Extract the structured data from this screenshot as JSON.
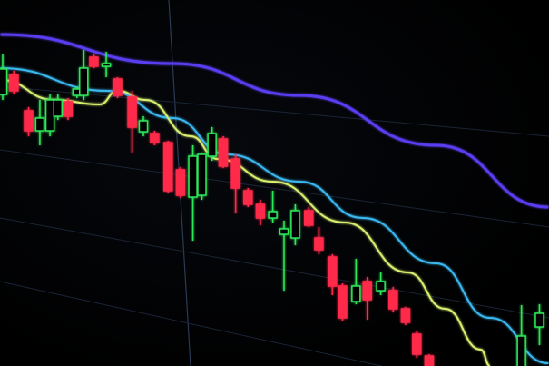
{
  "chart_data": {
    "type": "candlestick",
    "title": "",
    "xlabel": "",
    "ylabel": "",
    "xlim": [
      -0.3,
      48.5
    ],
    "ylim": [
      -1,
      100
    ],
    "grid": true,
    "legend": "none",
    "colors": {
      "up": "#2ee85a",
      "down": "#ff2a4a",
      "ma_slow": "#5a3cf0",
      "ma_mid": "#3ab8f0",
      "ma_fast": "#d8f070",
      "grid": "#2a3a55"
    },
    "candles": [
      {
        "i": 0,
        "o": 74,
        "h": 85,
        "l": 72.5,
        "c": 81
      },
      {
        "i": 1,
        "o": 79.5,
        "h": 80.5,
        "l": 74,
        "c": 75
      },
      {
        "i": 2.3,
        "o": 69.5,
        "h": 70.5,
        "l": 62.5,
        "c": 64
      },
      {
        "i": 3.3,
        "o": 64,
        "h": 72.5,
        "l": 60,
        "c": 67.5
      },
      {
        "i": 4.2,
        "o": 64,
        "h": 74,
        "l": 62.5,
        "c": 72.5
      },
      {
        "i": 4.9,
        "o": 68,
        "h": 74,
        "l": 67,
        "c": 72.5
      },
      {
        "i": 5.8,
        "o": 72,
        "h": 73,
        "l": 67,
        "c": 68
      },
      {
        "i": 6.6,
        "o": 73.75,
        "h": 76,
        "l": 73,
        "c": 75.5
      },
      {
        "i": 7.2,
        "o": 73.75,
        "h": 86.25,
        "l": 72.5,
        "c": 81.25
      },
      {
        "i": 8.1,
        "o": 84.25,
        "h": 85,
        "l": 81.25,
        "c": 81.75
      },
      {
        "i": 9.2,
        "o": 81.75,
        "h": 85.75,
        "l": 78.75,
        "c": 82.5
      },
      {
        "i": 10.2,
        "o": 78.25,
        "h": 78.75,
        "l": 73,
        "c": 73.75
      },
      {
        "i": 11.5,
        "o": 73.25,
        "h": 75,
        "l": 58,
        "c": 65
      },
      {
        "i": 12.5,
        "o": 63.75,
        "h": 68,
        "l": 62.5,
        "c": 66.75
      },
      {
        "i": 13.5,
        "o": 63.25,
        "h": 64,
        "l": 60,
        "c": 60.75
      },
      {
        "i": 14.7,
        "o": 60.75,
        "h": 61.25,
        "l": 46.75,
        "c": 47.5
      },
      {
        "i": 15.8,
        "o": 53.25,
        "h": 54,
        "l": 45.5,
        "c": 46.25
      },
      {
        "i": 16.9,
        "o": 45.75,
        "h": 60,
        "l": 33.75,
        "c": 57
      },
      {
        "i": 17.7,
        "o": 46.25,
        "h": 58,
        "l": 45,
        "c": 57.5
      },
      {
        "i": 18.6,
        "o": 57,
        "h": 65,
        "l": 55.75,
        "c": 63.25
      },
      {
        "i": 19.6,
        "o": 61.75,
        "h": 62.5,
        "l": 53.75,
        "c": 54.25
      },
      {
        "i": 20.7,
        "o": 56.25,
        "h": 57.5,
        "l": 41.25,
        "c": 48.25
      },
      {
        "i": 21.8,
        "o": 47.5,
        "h": 48.25,
        "l": 43,
        "c": 43.75
      },
      {
        "i": 22.9,
        "o": 43.75,
        "h": 45,
        "l": 38,
        "c": 40
      },
      {
        "i": 24,
        "o": 40,
        "h": 47.5,
        "l": 38.75,
        "c": 41.75
      },
      {
        "i": 25,
        "o": 35.5,
        "h": 39.25,
        "l": 20,
        "c": 37
      },
      {
        "i": 26,
        "o": 34.5,
        "h": 43.75,
        "l": 32.5,
        "c": 42
      },
      {
        "i": 27.2,
        "o": 42,
        "h": 43,
        "l": 37.5,
        "c": 38
      },
      {
        "i": 28.1,
        "o": 34.5,
        "h": 37.5,
        "l": 30,
        "c": 31.25
      },
      {
        "i": 29.3,
        "o": 29.25,
        "h": 30,
        "l": 18.75,
        "c": 21.25
      },
      {
        "i": 30.2,
        "o": 21.25,
        "h": 22,
        "l": 11.75,
        "c": 12.5
      },
      {
        "i": 31.4,
        "o": 17,
        "h": 28.75,
        "l": 16.25,
        "c": 21.25
      },
      {
        "i": 32.4,
        "o": 22.5,
        "h": 23.75,
        "l": 12,
        "c": 17.5
      },
      {
        "i": 33.6,
        "o": 20,
        "h": 25,
        "l": 18.75,
        "c": 22.5
      },
      {
        "i": 34.7,
        "o": 20,
        "h": 21,
        "l": 14,
        "c": 15
      },
      {
        "i": 35.8,
        "o": 15,
        "h": 15.5,
        "l": 10.5,
        "c": 11.25
      },
      {
        "i": 36.8,
        "o": 8,
        "h": 9,
        "l": 1.5,
        "c": 2.5
      },
      {
        "i": 37.9,
        "o": 2,
        "h": 2.5,
        "l": -1,
        "c": -1
      },
      {
        "i": 46.1,
        "o": -1,
        "h": 16,
        "l": -1,
        "c": 7.5
      },
      {
        "i": 47.7,
        "o": 10,
        "h": 16.25,
        "l": 5,
        "c": 13.75
      }
    ],
    "moving_averages": [
      {
        "key": "ma_slow",
        "points": [
          [
            -0.2,
            90.5
          ],
          [
            15.1,
            82.5
          ],
          [
            26.4,
            73.75
          ],
          [
            38.5,
            60
          ],
          [
            48.5,
            43
          ]
        ]
      },
      {
        "key": "ma_mid",
        "points": [
          [
            -0.2,
            81.25
          ],
          [
            9.4,
            75
          ],
          [
            15.1,
            67.5
          ],
          [
            19.9,
            57.5
          ],
          [
            26.4,
            50
          ],
          [
            32,
            40
          ],
          [
            38.5,
            27.5
          ],
          [
            43.3,
            12.5
          ],
          [
            48.5,
            0
          ]
        ]
      },
      {
        "key": "ma_fast",
        "points": [
          [
            -0.2,
            78
          ],
          [
            4.6,
            72.5
          ],
          [
            8.6,
            71.25
          ],
          [
            10.2,
            75
          ],
          [
            12.7,
            72.5
          ],
          [
            16.7,
            62.5
          ],
          [
            19.1,
            56.25
          ],
          [
            24,
            50
          ],
          [
            30.4,
            38.75
          ],
          [
            36,
            25
          ],
          [
            39.3,
            15
          ],
          [
            42.5,
            3.75
          ],
          [
            43.3,
            -0.75
          ]
        ]
      }
    ]
  }
}
